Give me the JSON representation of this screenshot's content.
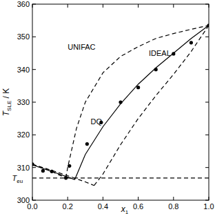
{
  "chart_data": {
    "type": "line",
    "x_label": {
      "main": "x",
      "sub": "1"
    },
    "y_label": {
      "main": "T",
      "sub": "SLE",
      "tail": " / K"
    },
    "xlim": [
      0,
      1
    ],
    "ylim": [
      300,
      360
    ],
    "xticks": [
      {
        "value": 0,
        "label": "0.0"
      },
      {
        "value": 0.2,
        "label": "0.2"
      },
      {
        "value": 0.4,
        "label": "0.4"
      },
      {
        "value": 0.6,
        "label": "0.6"
      },
      {
        "value": 0.8,
        "label": "0.8"
      },
      {
        "value": 1,
        "label": "1.0"
      }
    ],
    "yticks": [
      300,
      310,
      320,
      330,
      340,
      350,
      360
    ],
    "grid": false,
    "series": [
      {
        "type": "scatter",
        "marker": "circle",
        "color": "#000000",
        "x": [
          0.0,
          0.06,
          0.11,
          0.19,
          0.21,
          0.31,
          0.39,
          0.5,
          0.6,
          0.7,
          0.8,
          0.9,
          1.0
        ],
        "values": [
          311,
          309,
          308.8,
          306.8,
          310.5,
          317.2,
          323.8,
          330,
          334.5,
          340,
          344.8,
          348.2,
          353.5
        ]
      },
      {
        "type": "line",
        "line_style": "solid",
        "color": "#000000",
        "x": [
          0,
          0.12,
          0.24,
          null,
          0.24,
          0.3,
          0.4,
          0.5,
          0.6,
          0.7,
          0.8,
          0.9,
          1.0
        ],
        "values": [
          310.8,
          308.6,
          306.3,
          null,
          306.3,
          314,
          322.5,
          329.5,
          335.5,
          340.5,
          345,
          349.5,
          353.5
        ]
      },
      {
        "type": "line",
        "line_style": "dashed",
        "color": "#000000",
        "x": [
          0,
          0.1,
          0.19,
          null,
          0.19,
          0.2,
          0.25,
          0.3,
          0.4,
          0.5,
          0.6,
          0.7,
          0.8,
          0.9,
          1.0
        ],
        "values": [
          311,
          309,
          306.8,
          null,
          306.8,
          310,
          322,
          330,
          339,
          344,
          347,
          349.5,
          351,
          352.3,
          353.5
        ]
      },
      {
        "type": "line",
        "line_style": "dashed",
        "color": "#000000",
        "x": [
          0,
          0.1,
          0.2,
          0.3,
          0.35,
          null,
          0.35,
          0.4,
          0.5,
          0.6,
          0.7,
          0.8,
          0.9,
          1.0
        ],
        "values": [
          311,
          309.3,
          307.5,
          305.6,
          304.5,
          null,
          304.5,
          308,
          317,
          325,
          332,
          338.5,
          345.5,
          353.5
        ]
      },
      {
        "type": "line",
        "line_style": "dashed",
        "color": "#000000",
        "x": [
          0,
          1
        ],
        "values": [
          306.8,
          306.8
        ]
      }
    ],
    "annotations": [
      {
        "text": "UNIFAC",
        "x": 0.2,
        "y": 347
      },
      {
        "text": "IDEAL",
        "x": 0.66,
        "y": 345
      },
      {
        "text": "DQ",
        "x": 0.33,
        "y": 324
      },
      {
        "text": "T",
        "sub": "eu",
        "x": -0.115,
        "y": 306.8
      }
    ]
  }
}
